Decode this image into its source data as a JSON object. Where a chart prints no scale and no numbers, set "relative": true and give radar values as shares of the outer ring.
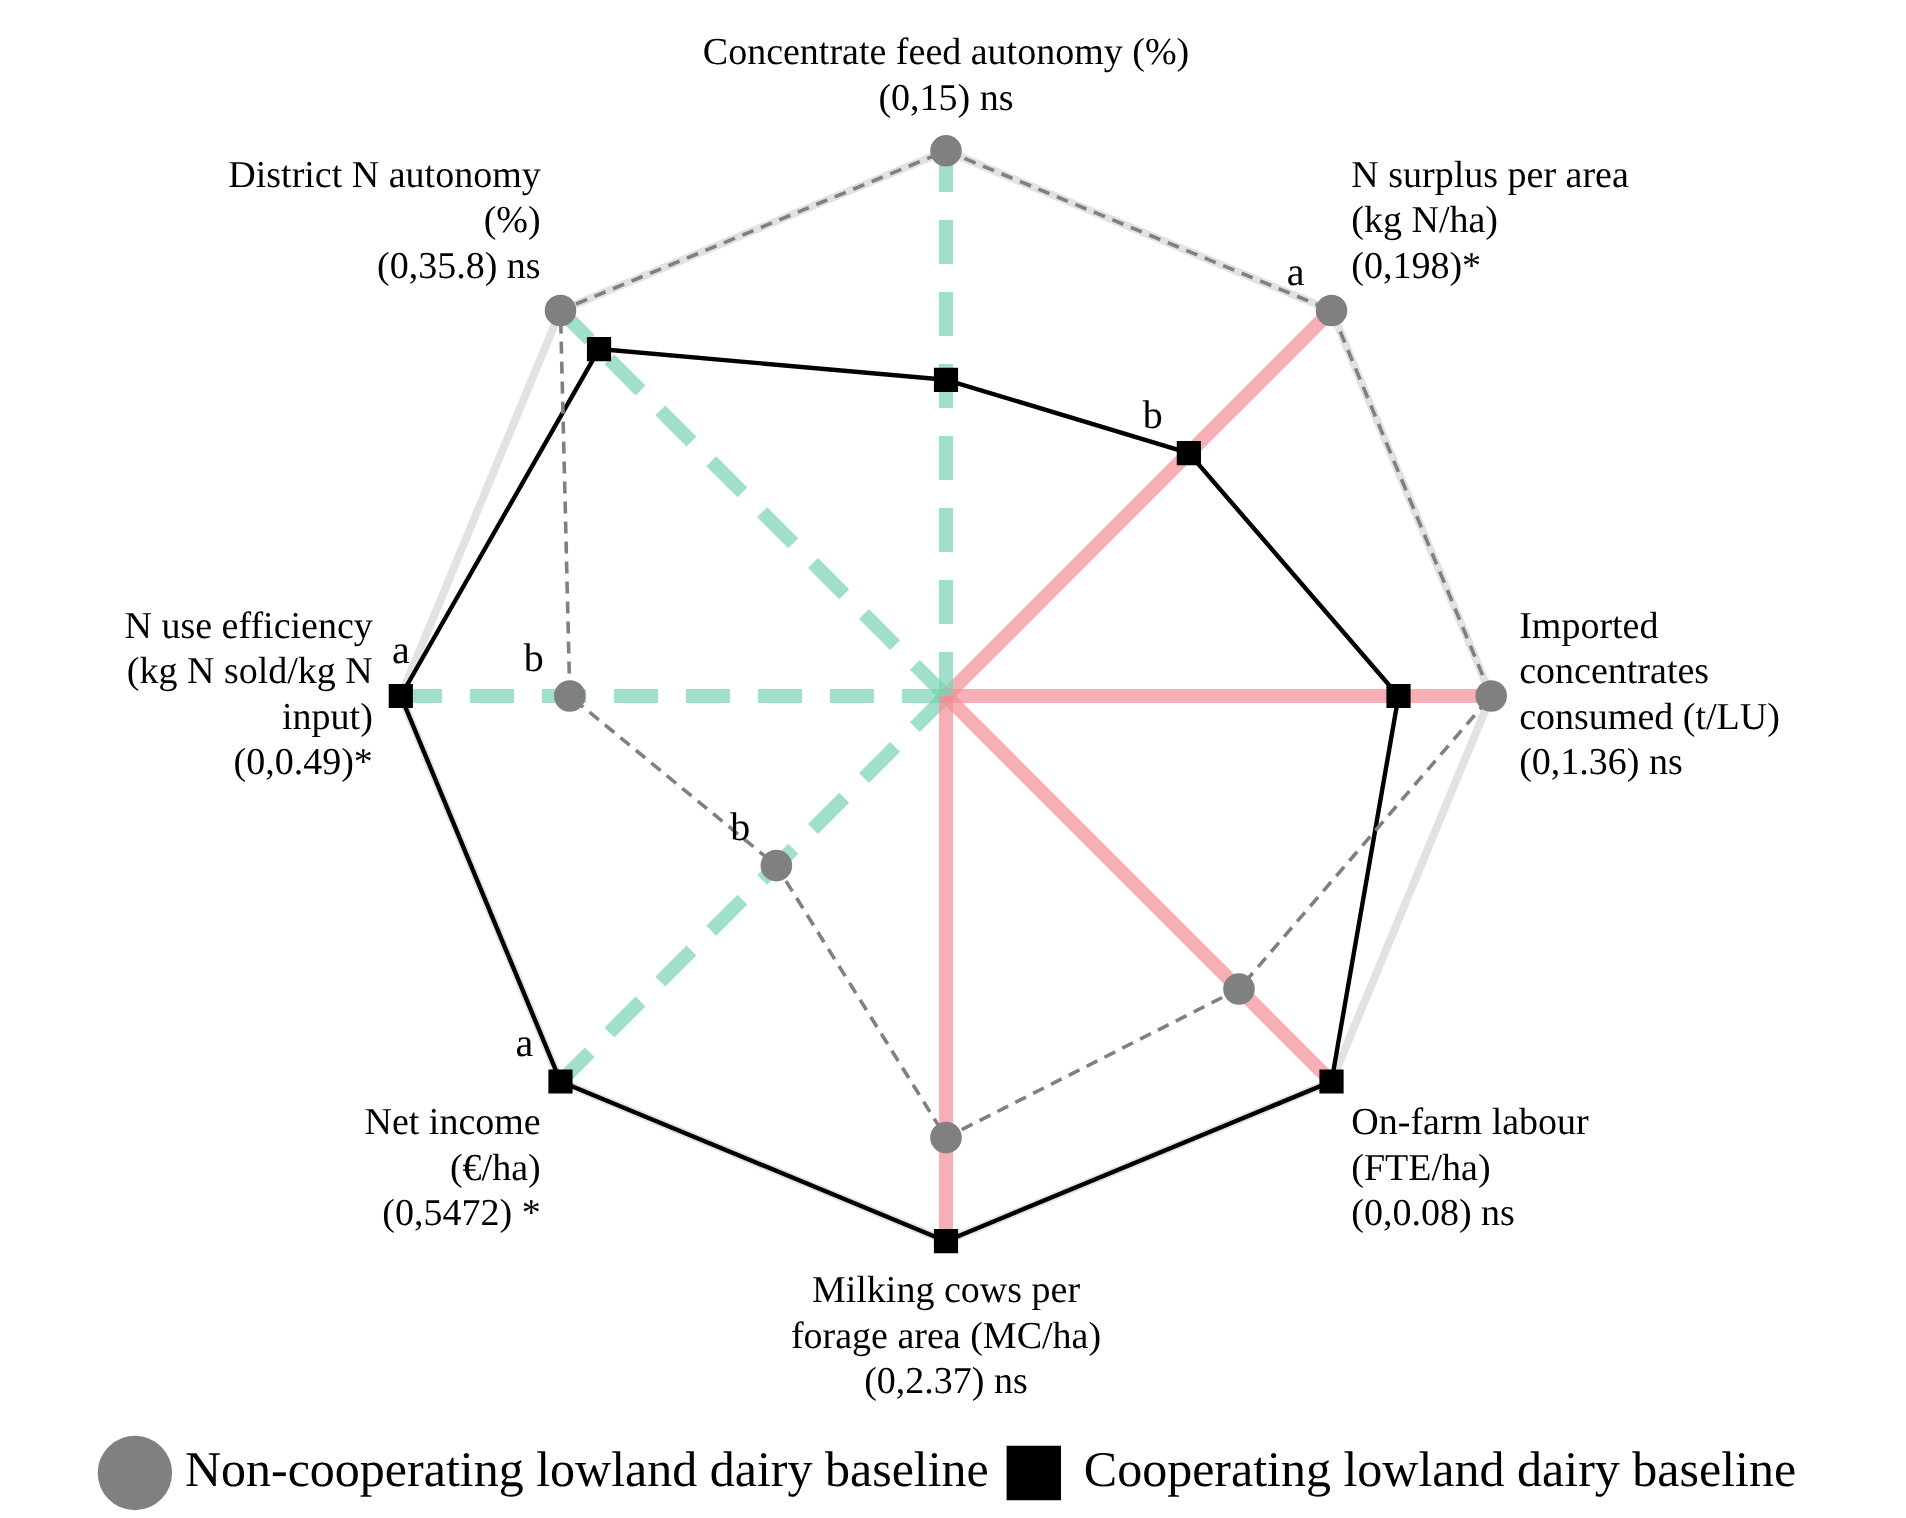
{
  "chart_data": {
    "type": "radar",
    "relative": true,
    "legend": "bottom",
    "categories": [
      "Concentrate feed autonomy (%)\n(0,15) ns",
      "N surplus per area\n(kg N/ha)\n(0,198)*",
      "Imported\nconcentrates\nconsumed (t/LU)\n(0,1.36) ns",
      "On-farm labour\n(FTE/ha)\n(0,0.08) ns",
      "Milking cows per\nforage area (MC/ha)\n(0,2.37) ns",
      "Net income\n(€/ha)\n(0,5472) *",
      "N use efficiency\n(kg N sold/kg N\ninput)\n(0,0.49)*",
      "District N autonomy\n(%)\n(0,35.8) ns"
    ],
    "series": [
      {
        "name": "Non-cooperating lowland dairy baseline",
        "color": "#808080",
        "marker": "circle",
        "line_style": "dashed",
        "values": [
          1,
          1,
          1,
          0.76,
          0.81,
          0.44,
          0.69,
          1
        ]
      },
      {
        "name": "Cooperating lowland dairy baseline",
        "color": "#000000",
        "marker": "square",
        "line_style": "solid",
        "values": [
          0.58,
          0.63,
          0.83,
          1,
          1,
          1,
          1,
          0.9
        ]
      }
    ],
    "annotations": [
      "a",
      "b",
      "a",
      "b",
      "a",
      "b"
    ]
  }
}
